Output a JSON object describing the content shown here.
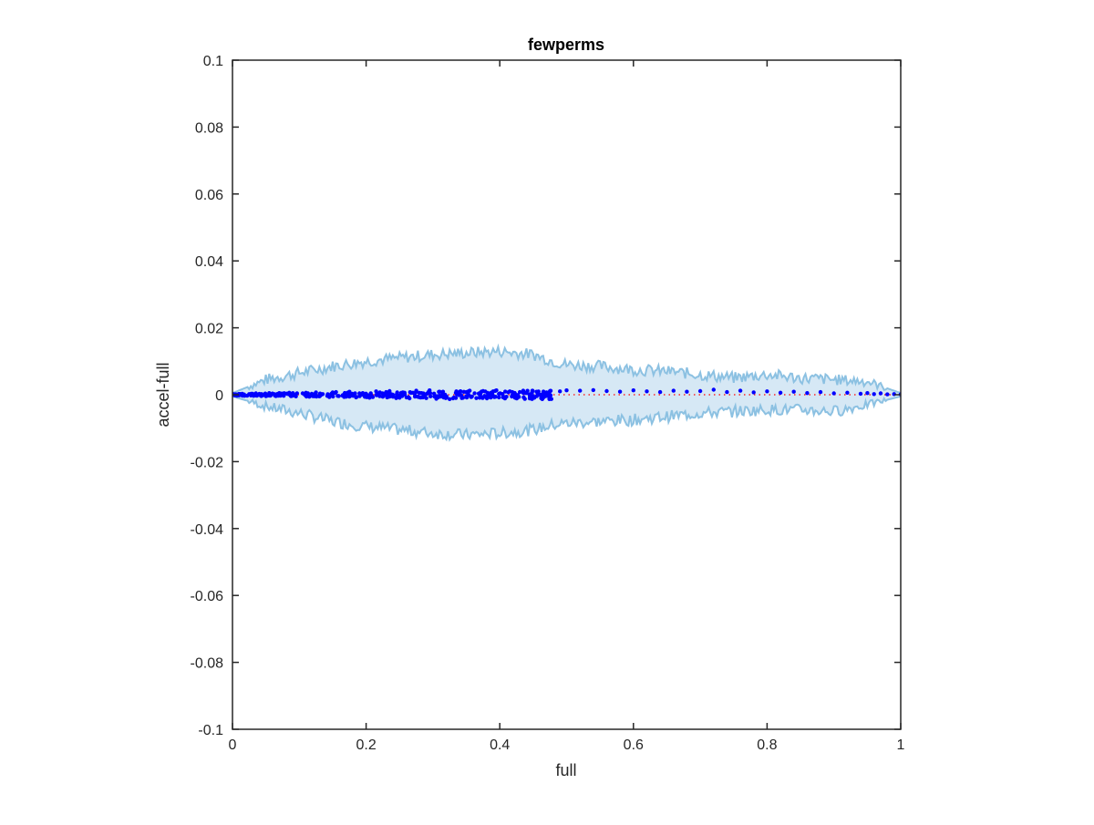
{
  "chart_data": {
    "type": "scatter",
    "title": "fewperms",
    "xlabel": "full",
    "ylabel": "accel-full",
    "xlim": [
      0,
      1
    ],
    "ylim": [
      -0.1,
      0.1
    ],
    "xticks": [
      0,
      0.2,
      0.4,
      0.6,
      0.8,
      1
    ],
    "xtick_labels": [
      "0",
      "0.2",
      "0.4",
      "0.6",
      "0.8",
      "1"
    ],
    "yticks": [
      -0.1,
      -0.08,
      -0.06,
      -0.04,
      -0.02,
      0,
      0.02,
      0.04,
      0.06,
      0.08,
      0.1
    ],
    "ytick_labels": [
      "-0.1",
      "-0.08",
      "-0.06",
      "-0.04",
      "-0.02",
      "0",
      "0.02",
      "0.04",
      "0.06",
      "0.08",
      "0.1"
    ],
    "grid": false,
    "colors": {
      "band_fill": "#d6e8f5",
      "band_edge": "#8cc1e2",
      "points": "#0000ff",
      "zero_line": "#ff0000",
      "axes": "#262626"
    },
    "reference_line": {
      "y": 0,
      "style": "dotted"
    },
    "band": {
      "x": [
        0,
        0.05,
        0.1,
        0.15,
        0.2,
        0.25,
        0.3,
        0.35,
        0.4,
        0.45,
        0.48,
        0.5,
        0.55,
        0.6,
        0.65,
        0.7,
        0.75,
        0.8,
        0.85,
        0.9,
        0.95,
        1
      ],
      "upper": [
        0.0005,
        0.0045,
        0.0065,
        0.0085,
        0.01,
        0.011,
        0.012,
        0.0125,
        0.013,
        0.012,
        0.01,
        0.009,
        0.0085,
        0.0075,
        0.007,
        0.006,
        0.005,
        0.006,
        0.005,
        0.0045,
        0.004,
        0.0005
      ],
      "lower": [
        -0.0005,
        -0.0035,
        -0.0055,
        -0.008,
        -0.0095,
        -0.0105,
        -0.0115,
        -0.012,
        -0.0115,
        -0.0105,
        -0.009,
        -0.0085,
        -0.008,
        -0.0075,
        -0.0065,
        -0.0055,
        -0.005,
        -0.0045,
        -0.0045,
        -0.005,
        -0.003,
        -0.0005
      ]
    },
    "series": [
      {
        "x": [
          0.005,
          0.015,
          0.025,
          0.035,
          0.045,
          0.055,
          0.065,
          0.075,
          0.085,
          0.095,
          0.105,
          0.115,
          0.125,
          0.135,
          0.145,
          0.155,
          0.165,
          0.175,
          0.185,
          0.195,
          0.205,
          0.215,
          0.225,
          0.235,
          0.245,
          0.255,
          0.265,
          0.275,
          0.285,
          0.295,
          0.305,
          0.315,
          0.325,
          0.335,
          0.345,
          0.355,
          0.365,
          0.375,
          0.385,
          0.395,
          0.405,
          0.415,
          0.425,
          0.435,
          0.445,
          0.455,
          0.465,
          0.475,
          0.49,
          0.5,
          0.52,
          0.54,
          0.56,
          0.58,
          0.6,
          0.62,
          0.64,
          0.66,
          0.68,
          0.7,
          0.72,
          0.74,
          0.76,
          0.78,
          0.8,
          0.82,
          0.84,
          0.86,
          0.88,
          0.9,
          0.92,
          0.94,
          0.95,
          0.96,
          0.97,
          0.98,
          0.99,
          1.0,
          0.01,
          0.03,
          0.05,
          0.07,
          0.09,
          0.11,
          0.13,
          0.15,
          0.17,
          0.19,
          0.21,
          0.23,
          0.25,
          0.27,
          0.29,
          0.31,
          0.33,
          0.35,
          0.37,
          0.39,
          0.41,
          0.43,
          0.45,
          0.47
        ],
        "y": [
          0.0001,
          -0.0003,
          0.0002,
          0.0004,
          -0.0002,
          0.0005,
          -0.0004,
          0.0003,
          0.0006,
          -0.0005,
          0.0004,
          -0.0006,
          0.0007,
          0.0002,
          -0.0007,
          0.0008,
          -0.0003,
          0.0009,
          -0.0008,
          0.0005,
          -0.0009,
          0.001,
          -0.0006,
          0.0011,
          -0.001,
          0.0007,
          -0.0011,
          0.0012,
          -0.0008,
          0.0013,
          -0.0012,
          0.0009,
          -0.0013,
          0.001,
          -0.0009,
          0.0012,
          -0.001,
          0.0011,
          -0.0007,
          0.0013,
          -0.0008,
          0.001,
          -0.0005,
          0.0012,
          -0.0006,
          0.0009,
          0.0003,
          0.0011,
          0.001,
          0.0013,
          0.0012,
          0.0014,
          0.0011,
          0.0009,
          0.0013,
          0.001,
          0.0008,
          0.0012,
          0.0009,
          0.0011,
          0.0015,
          0.0008,
          0.0012,
          0.0007,
          0.001,
          0.0006,
          0.0009,
          0.0005,
          0.0008,
          0.0004,
          0.0006,
          0.0003,
          0.0005,
          0.0002,
          0.0004,
          0.0001,
          0.0002,
          0.0001,
          -0.0002,
          0.0003,
          -0.0004,
          0.0005,
          -0.0003,
          0.0006,
          -0.0005,
          0.0007,
          -0.0006,
          0.0004,
          -0.0007,
          0.0008,
          -0.0009,
          0.0006,
          -0.001,
          0.0009,
          -0.0011,
          0.0008,
          -0.0009,
          0.001,
          -0.0006,
          0.0008,
          -0.0004,
          0.0007
        ]
      }
    ]
  }
}
